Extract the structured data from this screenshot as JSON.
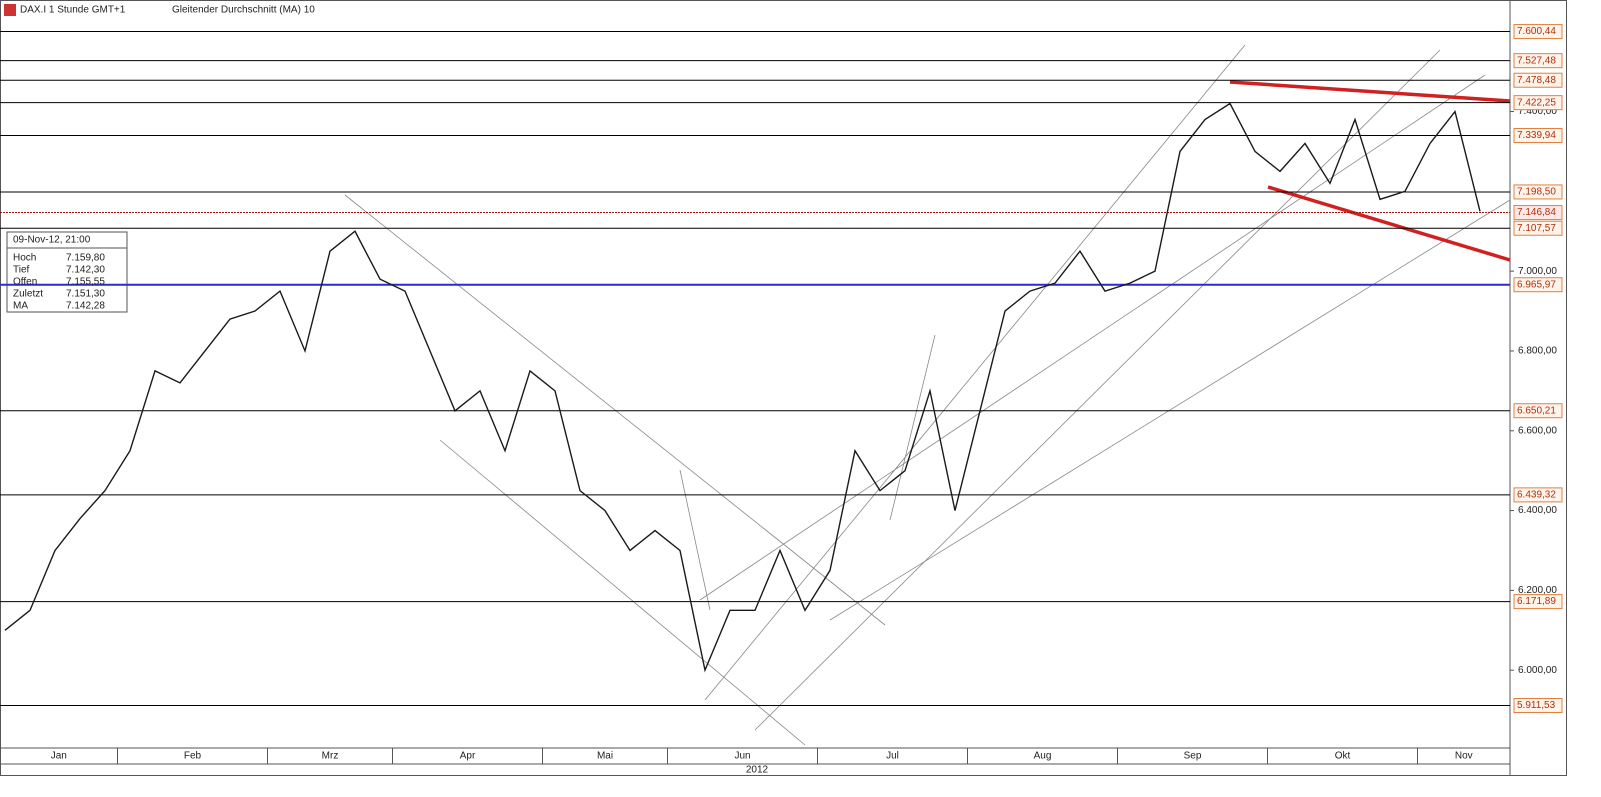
{
  "header": {
    "title": "DAX.I 1 Stunde GMT+1",
    "indicator": "Gleitender Durchschnitt (MA) 10"
  },
  "info_box": {
    "date": "09-Nov-12, 21:00",
    "rows": [
      {
        "label": "Hoch",
        "value": "7.159,80"
      },
      {
        "label": "Tief",
        "value": "7.142,30"
      },
      {
        "label": "Offen",
        "value": "7.155,55"
      },
      {
        "label": "Zuletzt",
        "value": "7.151,30"
      },
      {
        "label": "MA",
        "value": "7.142,28"
      }
    ]
  },
  "chart_data": {
    "type": "line",
    "x_label": "2012",
    "categories": [
      "Jan",
      null,
      null,
      null,
      null,
      "Feb",
      null,
      null,
      null,
      null,
      null,
      "Mrz",
      null,
      null,
      null,
      null,
      "Apr",
      null,
      null,
      null,
      null,
      null,
      "Mai",
      null,
      null,
      null,
      null,
      "Jun",
      null,
      null,
      null,
      null,
      null,
      "Jul",
      null,
      null,
      null,
      null,
      null,
      "Aug",
      null,
      null,
      null,
      null,
      null,
      "Sep",
      null,
      null,
      null,
      null,
      null,
      "Okt",
      null,
      null,
      null,
      null,
      null,
      "Nov",
      null,
      null
    ],
    "series": [
      {
        "name": "DAX.I",
        "color": "#1a1a1a",
        "values": [
          6100,
          6150,
          6300,
          6380,
          6450,
          6550,
          6750,
          6720,
          6800,
          6880,
          6900,
          6950,
          6800,
          7050,
          7100,
          6980,
          6950,
          6800,
          6650,
          6700,
          6550,
          6750,
          6700,
          6450,
          6400,
          6300,
          6350,
          6300,
          6000,
          6150,
          6150,
          6300,
          6150,
          6250,
          6550,
          6450,
          6500,
          6700,
          6400,
          6650,
          6900,
          6950,
          6970,
          7050,
          6950,
          6970,
          7000,
          7300,
          7380,
          7420,
          7300,
          7250,
          7320,
          7220,
          7380,
          7180,
          7200,
          7320,
          7400,
          7150
        ]
      }
    ],
    "ylim": [
      5805,
      7667
    ],
    "yticks": [
      {
        "value": 7400,
        "label": "7.400,00"
      },
      {
        "value": 7000,
        "label": "7.000,00"
      },
      {
        "value": 6800,
        "label": "6.800,00"
      },
      {
        "value": 6600,
        "label": "6.600,00"
      },
      {
        "value": 6400,
        "label": "6.400,00"
      },
      {
        "value": 6200,
        "label": "6.200,00"
      },
      {
        "value": 6000,
        "label": "6.000,00"
      }
    ],
    "grid": false,
    "levels": [
      {
        "value": 7600.44,
        "label": "7.600,44",
        "color": "#000000"
      },
      {
        "value": 7527.48,
        "label": "7.527,48",
        "color": "#000000"
      },
      {
        "value": 7478.48,
        "label": "7.478,48",
        "color": "#000000"
      },
      {
        "value": 7422.25,
        "label": "7.422,25",
        "color": "#000000"
      },
      {
        "value": 7339.94,
        "label": "7.339,94",
        "color": "#000000"
      },
      {
        "value": 7198.5,
        "label": "7.198,50",
        "color": "#000000"
      },
      {
        "value": 7146.84,
        "label": "7.146,84",
        "color": "#a01010"
      },
      {
        "value": 7107.57,
        "label": "7.107,57",
        "color": "#000000"
      },
      {
        "value": 6965.97,
        "label": "6.965,97",
        "color": "#2b2bd0"
      },
      {
        "value": 6650.21,
        "label": "6.650,21",
        "color": "#000000"
      },
      {
        "value": 6439.32,
        "label": "6.439,32",
        "color": "#000000"
      },
      {
        "value": 6171.89,
        "label": "6.171,89",
        "color": "#000000"
      },
      {
        "value": 5911.53,
        "label": "5.911,53",
        "color": "#000000"
      }
    ]
  }
}
